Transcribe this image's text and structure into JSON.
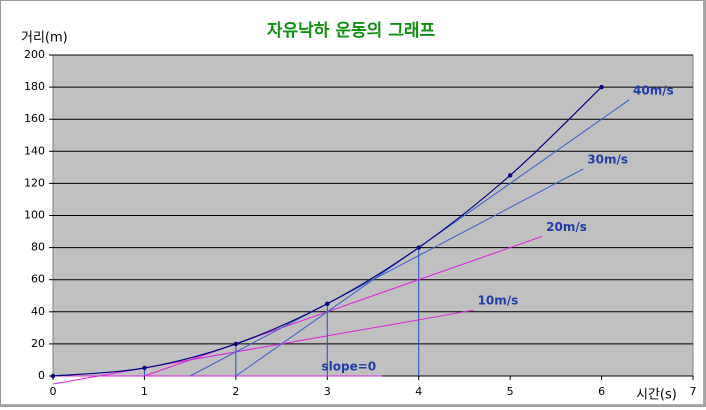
{
  "chart_data": {
    "type": "line",
    "title": "자유낙하 운동의 그래프",
    "y_label": "거리(m)",
    "x_label": "시간(s)",
    "x": [
      0,
      1,
      2,
      3,
      4,
      5,
      6
    ],
    "series": [
      {
        "color": "#000080",
        "values": [
          0,
          5,
          20,
          45,
          80,
          125,
          180
        ]
      }
    ],
    "tangents": [
      {
        "label": "slope=0",
        "color": "#e020e0",
        "x": [
          0,
          3.6
        ],
        "values": [
          0,
          0
        ]
      },
      {
        "label": "10m/s",
        "color": "#e020e0",
        "x": [
          0,
          4.6
        ],
        "values": [
          -5,
          41
        ]
      },
      {
        "label": "20m/s",
        "color": "#e020e0",
        "x": [
          1,
          5.35
        ],
        "values": [
          0,
          87
        ]
      },
      {
        "label": "30m/s",
        "color": "#3a5fcd",
        "x": [
          1.5,
          5.8
        ],
        "values": [
          0,
          129
        ]
      },
      {
        "label": "40m/s",
        "color": "#3a5fcd",
        "x": [
          2,
          6.3
        ],
        "values": [
          0,
          172
        ]
      }
    ],
    "drop_lines_at": [
      1,
      2,
      3,
      4
    ],
    "xlim": [
      0,
      7
    ],
    "xticks": [
      0,
      1,
      2,
      3,
      4,
      5,
      6,
      7
    ],
    "ylim": [
      0,
      200
    ],
    "yticks": [
      0,
      20,
      40,
      60,
      80,
      100,
      120,
      140,
      160,
      180,
      200
    ],
    "grid": true,
    "plot_background": "#c0c0c0"
  }
}
